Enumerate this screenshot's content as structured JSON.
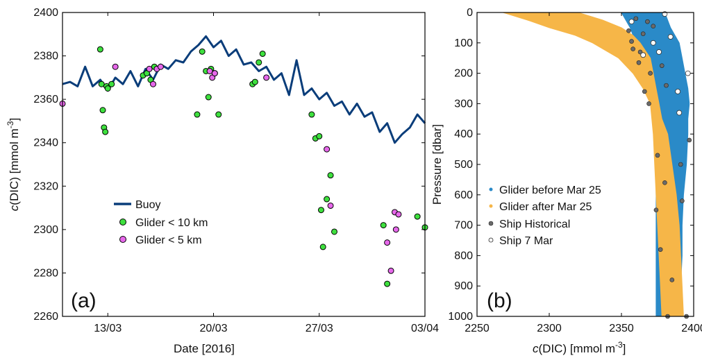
{
  "colors": {
    "buoy": "#0a3d7a",
    "glider10": "#3ee03e",
    "glider5": "#e668ea",
    "glider_before": "#2a8ac8",
    "glider_after": "#f6b648",
    "ship_hist": "#6a6a6a",
    "ship_7mar": "#ffffff"
  },
  "panel_a": {
    "label": "(a)",
    "xlabel": "Date [2016]",
    "ylabel_italic": "c",
    "ylabel_rest": "(DIC) [mmol m",
    "ylabel_sup": "-3",
    "ylabel_close": "]",
    "yticks": [
      "2260",
      "2280",
      "2300",
      "2320",
      "2340",
      "2360",
      "2380",
      "2400"
    ],
    "xticks": [
      "13/03",
      "20/03",
      "27/03",
      "03/04"
    ],
    "legend": [
      "Buoy",
      "Glider < 10 km",
      "Glider < 5 km"
    ]
  },
  "panel_b": {
    "label": "(b)",
    "xlabel_italic": "c",
    "xlabel_rest": "(DIC) [mmol m",
    "xlabel_sup": "-3",
    "xlabel_close": "]",
    "ylabel": "Pressure [dbar]",
    "xticks": [
      "2250",
      "2300",
      "2350",
      "2400"
    ],
    "yticks": [
      "0",
      "100",
      "200",
      "300",
      "400",
      "500",
      "600",
      "700",
      "800",
      "900",
      "1000"
    ],
    "legend": [
      "Glider before Mar 25",
      "Glider after Mar 25",
      "Ship Historical",
      "Ship 7 Mar"
    ]
  },
  "chart_data": [
    {
      "type": "line",
      "panel": "a",
      "xlabel": "Date [2016]",
      "ylabel": "c(DIC) [mmol m-3]",
      "xlim": [
        "2016-03-10",
        "2016-04-03"
      ],
      "ylim": [
        2260,
        2400
      ],
      "series": [
        {
          "name": "Buoy",
          "style": "line",
          "x": [
            "2016-03-10",
            "2016-03-10T12",
            "2016-03-11",
            "2016-03-11T12",
            "2016-03-12",
            "2016-03-12T12",
            "2016-03-13",
            "2016-03-13T12",
            "2016-03-14",
            "2016-03-14T12",
            "2016-03-15",
            "2016-03-15T12",
            "2016-03-16",
            "2016-03-16T12",
            "2016-03-17",
            "2016-03-17T12",
            "2016-03-18",
            "2016-03-18T12",
            "2016-03-19",
            "2016-03-19T12",
            "2016-03-20",
            "2016-03-20T12",
            "2016-03-21",
            "2016-03-21T12",
            "2016-03-22",
            "2016-03-22T12",
            "2016-03-23",
            "2016-03-23T12",
            "2016-03-24",
            "2016-03-24T12",
            "2016-03-25",
            "2016-03-25T12",
            "2016-03-26",
            "2016-03-26T12",
            "2016-03-27",
            "2016-03-27T12",
            "2016-03-28",
            "2016-03-28T12",
            "2016-03-29",
            "2016-03-29T12",
            "2016-03-30",
            "2016-03-30T12",
            "2016-03-31",
            "2016-03-31T12",
            "2016-04-01",
            "2016-04-01T12",
            "2016-04-02",
            "2016-04-02T12",
            "2016-04-03"
          ],
          "y": [
            2367,
            2368,
            2366,
            2375,
            2366,
            2369,
            2364,
            2370,
            2367,
            2373,
            2366,
            2374,
            2369,
            2376,
            2374,
            2378,
            2377,
            2382,
            2385,
            2389,
            2384,
            2387,
            2380,
            2383,
            2376,
            2377,
            2373,
            2375,
            2369,
            2372,
            2362,
            2378,
            2362,
            2365,
            2360,
            2363,
            2357,
            2359,
            2353,
            2358,
            2352,
            2354,
            2345,
            2349,
            2340,
            2344,
            2347,
            2353,
            2349
          ]
        },
        {
          "name": "Glider < 10 km",
          "style": "scatter",
          "x": [
            "2016-03-12T12",
            "2016-03-12T14",
            "2016-03-12T16",
            "2016-03-12T18",
            "2016-03-12T20",
            "2016-03-12T22",
            "2016-03-13",
            "2016-03-13T06",
            "2016-03-15T08",
            "2016-03-15T14",
            "2016-03-15T20",
            "2016-03-16T02",
            "2016-03-18T22",
            "2016-03-19T06",
            "2016-03-19T12",
            "2016-03-19T16",
            "2016-03-19T20",
            "2016-03-20T02",
            "2016-03-20T08",
            "2016-03-22T14",
            "2016-03-22T18",
            "2016-03-23",
            "2016-03-23T06",
            "2016-03-26T12",
            "2016-03-26T18",
            "2016-03-27",
            "2016-03-27T03",
            "2016-03-27T06",
            "2016-03-27T12",
            "2016-03-27T18",
            "2016-03-28",
            "2016-03-31T06",
            "2016-03-31T12",
            "2016-04-02T12",
            "2016-04-03"
          ],
          "y": [
            2383,
            2367,
            2355,
            2347,
            2345,
            2366,
            2365,
            2367,
            2371,
            2372,
            2369,
            2375,
            2353,
            2382,
            2373,
            2361,
            2374,
            2372,
            2353,
            2367,
            2368,
            2377,
            2381,
            2353,
            2342,
            2343,
            2309,
            2292,
            2314,
            2325,
            2299,
            2302,
            2275,
            2306,
            2301
          ]
        },
        {
          "name": "Glider < 5 km",
          "style": "scatter",
          "x": [
            "2016-03-10",
            "2016-03-13T12",
            "2016-03-15T18",
            "2016-03-16",
            "2016-03-16T06",
            "2016-03-16T12",
            "2016-03-19T18",
            "2016-03-19T22",
            "2016-03-20T02",
            "2016-03-23T12",
            "2016-03-27T12",
            "2016-03-27T18",
            "2016-03-31T12",
            "2016-03-31T18",
            "2016-04-01",
            "2016-04-01T02",
            "2016-04-01T06"
          ],
          "y": [
            2358,
            2375,
            2374,
            2367,
            2374,
            2375,
            2373,
            2370,
            2372,
            2370,
            2337,
            2311,
            2294,
            2281,
            2308,
            2300,
            2307
          ]
        }
      ]
    },
    {
      "type": "scatter",
      "panel": "b",
      "xlabel": "c(DIC) [mmol m-3]",
      "ylabel": "Pressure [dbar]",
      "xlim": [
        2250,
        2400
      ],
      "ylim": [
        1000,
        0
      ],
      "series": [
        {
          "name": "Glider before Mar 25",
          "style": "band",
          "pressure": [
            0,
            50,
            100,
            150,
            200,
            250,
            300,
            350,
            400,
            500,
            600,
            700,
            800,
            900,
            1000
          ],
          "dic_min": [
            2350,
            2356,
            2360,
            2365,
            2369,
            2372,
            2373,
            2374,
            2374,
            2374,
            2374,
            2374,
            2374,
            2374,
            2374
          ],
          "dic_max": [
            2380,
            2384,
            2390,
            2392,
            2394,
            2396,
            2397,
            2396,
            2396,
            2395,
            2393,
            2392,
            2392,
            2391,
            2390
          ]
        },
        {
          "name": "Glider after Mar 25",
          "style": "band",
          "pressure": [
            0,
            25,
            50,
            75,
            100,
            150,
            200,
            250,
            300,
            350,
            400,
            500,
            600,
            700,
            800,
            900,
            1000
          ],
          "dic_min": [
            2268,
            2285,
            2300,
            2318,
            2330,
            2348,
            2358,
            2365,
            2370,
            2371,
            2372,
            2373,
            2374,
            2375,
            2376,
            2377,
            2378
          ],
          "dic_max": [
            2320,
            2337,
            2350,
            2358,
            2363,
            2370,
            2372,
            2374,
            2376,
            2378,
            2382,
            2385,
            2388,
            2390,
            2391,
            2392,
            2393
          ]
        },
        {
          "name": "Ship Historical",
          "style": "scatter",
          "x": [
            2360,
            2368,
            2372,
            2365,
            2355,
            2358,
            2362,
            2370,
            2378,
            2366,
            2363,
            2357,
            2369,
            2381,
            2375,
            2380,
            2391,
            2397,
            2374,
            2385,
            2377,
            2392,
            2395,
            2382
          ],
          "y": [
            20,
            30,
            45,
            70,
            60,
            120,
            165,
            200,
            175,
            260,
            130,
            95,
            300,
            240,
            470,
            560,
            500,
            420,
            650,
            880,
            780,
            620,
            1000,
            1000
          ]
        },
        {
          "name": "Ship 7 Mar",
          "style": "scatter",
          "x": [
            2357,
            2380,
            2372,
            2384,
            2376,
            2365,
            2396,
            2389,
            2390
          ],
          "y": [
            30,
            5,
            100,
            80,
            130,
            140,
            200,
            260,
            330
          ]
        }
      ]
    }
  ]
}
